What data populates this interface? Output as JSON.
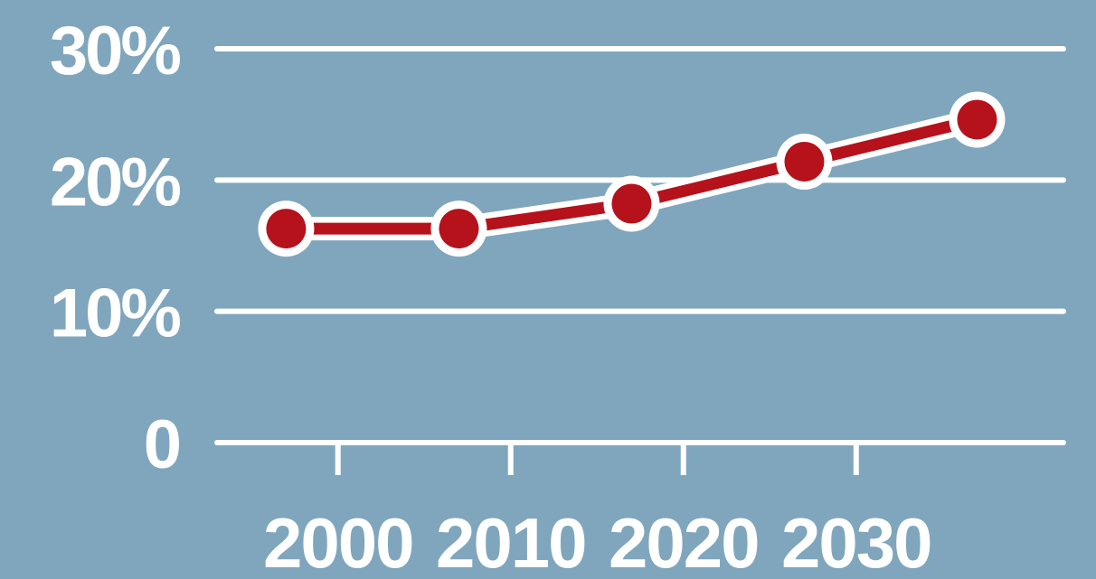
{
  "chart_data": {
    "type": "line",
    "title": "",
    "xlabel": "",
    "ylabel": "",
    "x": [
      1997,
      2007,
      2017,
      2027,
      2037
    ],
    "series": [
      {
        "values": [
          16.3,
          16.3,
          18.2,
          21.4,
          24.6
        ]
      }
    ],
    "xlim": [
      1993,
      2042
    ],
    "ylim": [
      0,
      30
    ],
    "y_ticks": [
      0,
      10,
      20,
      30
    ],
    "y_tick_labels": [
      "0",
      "10%",
      "20%",
      "30%"
    ],
    "x_ticks": [
      2000,
      2010,
      2020,
      2030
    ],
    "x_tick_labels": [
      "2000",
      "2010",
      "2020",
      "2030"
    ],
    "grid": true,
    "legend": "none",
    "colors": {
      "background": "#7fa6bd",
      "grid": "#ffffff",
      "line": "#b5121b",
      "outline": "#ffffff"
    }
  }
}
